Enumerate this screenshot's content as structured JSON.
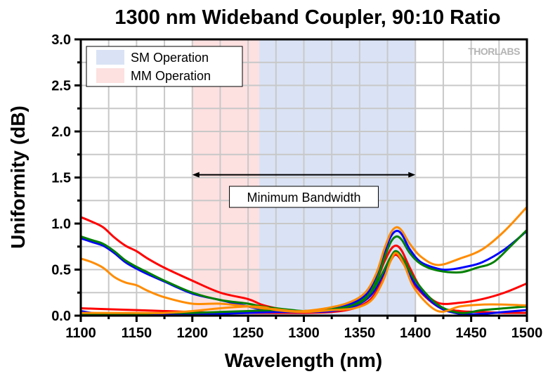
{
  "chart_data": {
    "type": "line",
    "title": "1300 nm Wideband Coupler, 90:10 Ratio",
    "xlabel": "Wavelength (nm)",
    "ylabel": "Uniformity (dB)",
    "xlim": [
      1100,
      1500
    ],
    "ylim": [
      0.0,
      3.0
    ],
    "x_major_ticks": [
      1100,
      1150,
      1200,
      1250,
      1300,
      1350,
      1400,
      1450,
      1500
    ],
    "x_tick_labels": [
      "1100",
      "1150",
      "1200",
      "1250",
      "1300",
      "1350",
      "1400",
      "1450",
      "1500"
    ],
    "x_minor_step": 25,
    "y_major_ticks": [
      0.0,
      0.5,
      1.0,
      1.5,
      2.0,
      2.5,
      3.0
    ],
    "y_tick_labels": [
      "0.0",
      "0.5",
      "1.0",
      "1.5",
      "2.0",
      "2.5",
      "3.0"
    ],
    "y_minor_step": 0.25,
    "grid": true,
    "legend": {
      "placement": "top-left",
      "entries": [
        {
          "label": "SM Operation",
          "color": "#dae3f5"
        },
        {
          "label": "MM Operation",
          "color": "#fde0e0"
        }
      ]
    },
    "shaded_regions": [
      {
        "name": "MM Operation",
        "x_range": [
          1200,
          1260
        ],
        "color": "#fde0e0"
      },
      {
        "name": "SM Operation",
        "x_range": [
          1260,
          1400
        ],
        "color": "#dae3f5"
      }
    ],
    "annotations": [
      {
        "type": "double-arrow",
        "x_range": [
          1200,
          1400
        ],
        "y": 1.53,
        "text": "Minimum Bandwidth",
        "text_x": 1300,
        "text_y": 1.29
      }
    ],
    "watermark": "THORLABS",
    "series": [
      {
        "name": "red-upper",
        "color": "#ff0000",
        "x": [
          1100,
          1110,
          1120,
          1130,
          1140,
          1150,
          1160,
          1175,
          1200,
          1225,
          1250,
          1262,
          1275,
          1290,
          1300,
          1320,
          1340,
          1355,
          1365,
          1372,
          1378,
          1383,
          1388,
          1395,
          1405,
          1420,
          1440,
          1460,
          1480,
          1500
        ],
        "y": [
          1.07,
          1.02,
          0.96,
          0.85,
          0.76,
          0.7,
          0.62,
          0.52,
          0.38,
          0.25,
          0.18,
          0.12,
          0.08,
          0.05,
          0.04,
          0.05,
          0.1,
          0.2,
          0.38,
          0.58,
          0.72,
          0.76,
          0.7,
          0.52,
          0.3,
          0.14,
          0.14,
          0.18,
          0.25,
          0.35
        ]
      },
      {
        "name": "red-lower",
        "color": "#ff0000",
        "x": [
          1100,
          1125,
          1150,
          1175,
          1200,
          1225,
          1250,
          1275,
          1300,
          1325,
          1345,
          1360,
          1370,
          1378,
          1383,
          1390,
          1400,
          1420,
          1440,
          1460,
          1480,
          1500
        ],
        "y": [
          0.08,
          0.07,
          0.06,
          0.05,
          0.04,
          0.03,
          0.03,
          0.03,
          0.03,
          0.04,
          0.08,
          0.18,
          0.38,
          0.6,
          0.66,
          0.55,
          0.32,
          0.1,
          0.05,
          0.04,
          0.03,
          0.03
        ]
      },
      {
        "name": "blue-upper",
        "color": "#0000ff",
        "x": [
          1100,
          1110,
          1120,
          1130,
          1140,
          1150,
          1160,
          1175,
          1200,
          1225,
          1250,
          1262,
          1275,
          1290,
          1300,
          1320,
          1340,
          1355,
          1365,
          1372,
          1378,
          1383,
          1388,
          1395,
          1405,
          1420,
          1430,
          1445,
          1460,
          1480,
          1500
        ],
        "y": [
          0.84,
          0.8,
          0.76,
          0.68,
          0.58,
          0.51,
          0.45,
          0.37,
          0.24,
          0.17,
          0.1,
          0.07,
          0.06,
          0.05,
          0.05,
          0.07,
          0.12,
          0.22,
          0.42,
          0.68,
          0.86,
          0.92,
          0.88,
          0.72,
          0.58,
          0.51,
          0.5,
          0.53,
          0.58,
          0.72,
          0.92
        ]
      },
      {
        "name": "blue-lower",
        "color": "#0000ff",
        "x": [
          1100,
          1110,
          1125,
          1150,
          1175,
          1200,
          1225,
          1250,
          1275,
          1300,
          1325,
          1345,
          1360,
          1370,
          1378,
          1383,
          1390,
          1400,
          1420,
          1440,
          1460,
          1480,
          1500
        ],
        "y": [
          0.05,
          0.03,
          0.02,
          0.01,
          0.01,
          0.01,
          0.02,
          0.03,
          0.04,
          0.04,
          0.05,
          0.1,
          0.22,
          0.42,
          0.62,
          0.68,
          0.58,
          0.34,
          0.1,
          0.02,
          0.02,
          0.04,
          0.06
        ]
      },
      {
        "name": "green-upper",
        "color": "#008000",
        "x": [
          1100,
          1110,
          1120,
          1130,
          1140,
          1150,
          1160,
          1175,
          1200,
          1225,
          1250,
          1262,
          1275,
          1290,
          1300,
          1320,
          1340,
          1355,
          1365,
          1372,
          1378,
          1383,
          1388,
          1395,
          1405,
          1420,
          1440,
          1455,
          1470,
          1485,
          1500
        ],
        "y": [
          0.86,
          0.82,
          0.78,
          0.7,
          0.6,
          0.53,
          0.47,
          0.38,
          0.25,
          0.17,
          0.13,
          0.1,
          0.08,
          0.06,
          0.05,
          0.06,
          0.1,
          0.18,
          0.38,
          0.62,
          0.8,
          0.86,
          0.82,
          0.68,
          0.56,
          0.49,
          0.47,
          0.52,
          0.58,
          0.75,
          0.93
        ]
      },
      {
        "name": "green-lower",
        "color": "#008000",
        "x": [
          1100,
          1125,
          1150,
          1175,
          1200,
          1225,
          1250,
          1275,
          1300,
          1325,
          1345,
          1360,
          1370,
          1378,
          1383,
          1390,
          1400,
          1420,
          1440,
          1460,
          1480,
          1500
        ],
        "y": [
          0.02,
          0.02,
          0.02,
          0.03,
          0.03,
          0.04,
          0.05,
          0.06,
          0.05,
          0.07,
          0.12,
          0.25,
          0.45,
          0.64,
          0.7,
          0.6,
          0.38,
          0.12,
          0.03,
          0.06,
          0.08,
          0.1
        ]
      },
      {
        "name": "orange-upper",
        "color": "#ff8c00",
        "x": [
          1100,
          1110,
          1120,
          1130,
          1140,
          1150,
          1160,
          1175,
          1200,
          1225,
          1250,
          1262,
          1275,
          1290,
          1300,
          1320,
          1340,
          1355,
          1365,
          1372,
          1378,
          1383,
          1388,
          1395,
          1405,
          1420,
          1440,
          1460,
          1480,
          1500
        ],
        "y": [
          0.62,
          0.58,
          0.52,
          0.42,
          0.36,
          0.33,
          0.27,
          0.2,
          0.13,
          0.13,
          0.1,
          0.08,
          0.07,
          0.05,
          0.05,
          0.08,
          0.14,
          0.25,
          0.46,
          0.72,
          0.9,
          0.96,
          0.92,
          0.78,
          0.64,
          0.55,
          0.62,
          0.72,
          0.92,
          1.18
        ]
      },
      {
        "name": "orange-lower",
        "color": "#ff8c00",
        "x": [
          1100,
          1125,
          1150,
          1175,
          1200,
          1225,
          1250,
          1265,
          1275,
          1300,
          1325,
          1345,
          1360,
          1370,
          1378,
          1383,
          1390,
          1400,
          1420,
          1440,
          1460,
          1480,
          1500
        ],
        "y": [
          0.03,
          0.03,
          0.03,
          0.03,
          0.05,
          0.08,
          0.1,
          0.09,
          0.06,
          0.04,
          0.06,
          0.08,
          0.16,
          0.35,
          0.6,
          0.68,
          0.55,
          0.28,
          0.05,
          0.1,
          0.12,
          0.12,
          0.11
        ]
      }
    ]
  }
}
